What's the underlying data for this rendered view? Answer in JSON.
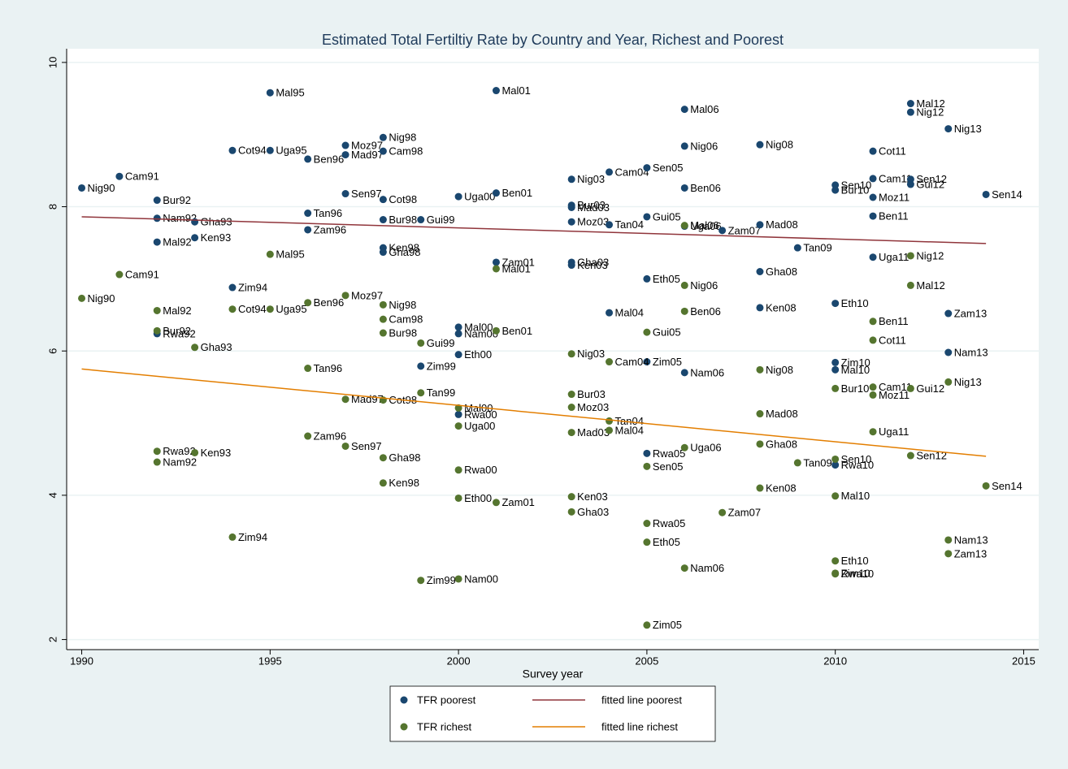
{
  "chart_data": {
    "type": "scatter",
    "title": "Estimated Total Fertiltiy Rate by Country and Year, Richest and Poorest",
    "x_label": "Survey year",
    "xlim": [
      1989.6,
      2015.4
    ],
    "xticks": [
      1990,
      1995,
      2000,
      2005,
      2010,
      2015
    ],
    "ylim": [
      1.86,
      10.19
    ],
    "yticks": [
      2,
      4,
      6,
      8,
      10
    ],
    "grid": true,
    "series": [
      {
        "name": "TFR poorest",
        "kind": "scatter",
        "color": "#1a476f",
        "x": [
          1990,
          1991,
          1992,
          1992,
          1992,
          1992,
          1993,
          1993,
          1994,
          1994,
          1995,
          1995,
          1996,
          1996,
          1996,
          1997,
          1997,
          1997,
          1998,
          1998,
          1998,
          1998,
          1998,
          1998,
          1999,
          1999,
          2000,
          2000,
          2000,
          2000,
          2000,
          2001,
          2001,
          2001,
          2003,
          2003,
          2003,
          2003,
          2003,
          2003,
          2004,
          2004,
          2004,
          2005,
          2005,
          2005,
          2005,
          2005,
          2006,
          2006,
          2006,
          2006,
          2006,
          2007,
          2008,
          2008,
          2008,
          2008,
          2009,
          2010,
          2010,
          2010,
          2010,
          2010,
          2010,
          2011,
          2011,
          2011,
          2011,
          2011,
          2012,
          2012,
          2012,
          2012,
          2013,
          2013,
          2013,
          2014
        ],
        "values": [
          8.26,
          8.42,
          8.09,
          7.84,
          7.51,
          6.24,
          7.79,
          7.57,
          6.88,
          8.78,
          9.58,
          8.78,
          8.66,
          7.91,
          7.68,
          8.85,
          8.72,
          8.18,
          8.96,
          8.77,
          8.1,
          7.82,
          7.43,
          7.37,
          7.82,
          5.79,
          8.14,
          6.33,
          6.24,
          5.95,
          5.12,
          8.19,
          9.61,
          7.23,
          8.38,
          8.02,
          7.99,
          7.79,
          7.23,
          7.19,
          8.48,
          7.75,
          6.53,
          8.54,
          7.86,
          7.0,
          5.85,
          4.58,
          9.35,
          8.84,
          8.26,
          7.73,
          5.7,
          7.67,
          8.86,
          7.75,
          7.1,
          6.6,
          7.43,
          8.3,
          8.23,
          6.66,
          5.84,
          5.74,
          4.42,
          8.77,
          8.39,
          8.13,
          7.87,
          7.3,
          9.43,
          9.31,
          8.38,
          8.31,
          9.08,
          6.52,
          5.98,
          8.17
        ],
        "labels": [
          "Nig90",
          "Cam91",
          "Bur92",
          "Nam92",
          "Mal92",
          "Rwa92",
          "Gha93",
          "Ken93",
          "Zim94",
          "Cot94",
          "Mal95",
          "Uga95",
          "Ben96",
          "Tan96",
          "Zam96",
          "Moz97",
          "Mad97",
          "Sen97",
          "Nig98",
          "Cam98",
          "Cot98",
          "Bur98",
          "Ken98",
          "Gha98",
          "Gui99",
          "Zim99",
          "Uga00",
          "Mal00",
          "Nam00",
          "Eth00",
          "Rwa00",
          "Ben01",
          "Mal01",
          "Zam01",
          "Nig03",
          "Bur03",
          "Mad03",
          "Moz03",
          "Gha03",
          "Ken03",
          "Cam04",
          "Tan04",
          "Mal04",
          "Sen05",
          "Gui05",
          "Eth05",
          "Zim05",
          "Rwa05",
          "Mal06",
          "Nig06",
          "Ben06",
          "Uga06",
          "Nam06",
          "Zam07",
          "Nig08",
          "Mad08",
          "Gha08",
          "Ken08",
          "Tan09",
          "Sen10",
          "Bur10",
          "Eth10",
          "Zim10",
          "Mal10",
          "Rwa10",
          "Cot11",
          "Cam11",
          "Moz11",
          "Ben11",
          "Uga11",
          "Mal12",
          "Nig12",
          "Sen12",
          "Gui12",
          "Nig13",
          "Zam13",
          "Nam13",
          "Sen14"
        ]
      },
      {
        "name": "fitted line poorest",
        "kind": "line",
        "color": "#90353b",
        "x": [
          1990,
          2014
        ],
        "values": [
          7.86,
          7.49
        ]
      },
      {
        "name": "TFR richest",
        "kind": "scatter",
        "color": "#55752f",
        "x": [
          1990,
          1991,
          1992,
          1992,
          1992,
          1992,
          1993,
          1993,
          1994,
          1994,
          1995,
          1995,
          1996,
          1996,
          1996,
          1997,
          1997,
          1997,
          1998,
          1998,
          1998,
          1998,
          1998,
          1998,
          1999,
          1999,
          1999,
          2000,
          2000,
          2000,
          2000,
          2000,
          2001,
          2001,
          2001,
          2003,
          2003,
          2003,
          2003,
          2003,
          2003,
          2004,
          2004,
          2004,
          2005,
          2005,
          2005,
          2005,
          2005,
          2006,
          2006,
          2006,
          2006,
          2006,
          2007,
          2008,
          2008,
          2008,
          2008,
          2009,
          2010,
          2010,
          2010,
          2010,
          2010,
          2010,
          2011,
          2011,
          2011,
          2011,
          2011,
          2012,
          2012,
          2012,
          2012,
          2013,
          2013,
          2013,
          2014
        ],
        "values": [
          6.73,
          7.06,
          6.56,
          6.28,
          4.61,
          4.46,
          6.05,
          4.59,
          6.58,
          3.42,
          7.34,
          6.58,
          6.67,
          5.76,
          4.82,
          6.77,
          5.33,
          4.68,
          6.64,
          6.44,
          6.25,
          5.32,
          4.52,
          4.17,
          6.11,
          5.42,
          2.82,
          5.21,
          4.96,
          4.35,
          3.96,
          2.84,
          7.14,
          6.28,
          3.9,
          5.96,
          5.4,
          5.22,
          4.87,
          3.98,
          3.77,
          5.85,
          5.03,
          4.9,
          6.26,
          4.4,
          3.61,
          3.35,
          2.2,
          7.74,
          6.91,
          6.55,
          4.66,
          2.99,
          3.76,
          5.74,
          5.13,
          4.71,
          4.1,
          4.45,
          5.48,
          4.5,
          3.99,
          3.09,
          2.92,
          2.91,
          5.5,
          5.39,
          4.88,
          6.41,
          6.15,
          6.91,
          7.32,
          5.48,
          4.55,
          5.57,
          3.38,
          3.19,
          4.13
        ],
        "labels": [
          "Nig90",
          "Cam91",
          "Mal92",
          "Bur92",
          "Rwa92",
          "Nam92",
          "Gha93",
          "Ken93",
          "Cot94",
          "Zim94",
          "Mal95",
          "Uga95",
          "Ben96",
          "Tan96",
          "Zam96",
          "Moz97",
          "Mad97",
          "Sen97",
          "Nig98",
          "Cam98",
          "Bur98",
          "Cot98",
          "Gha98",
          "Ken98",
          "Gui99",
          "Tan99",
          "Zim99",
          "Mal00",
          "Uga00",
          "Rwa00",
          "Eth00",
          "Nam00",
          "Mal01",
          "Ben01",
          "Zam01",
          "Nig03",
          "Bur03",
          "Moz03",
          "Mad03",
          "Ken03",
          "Gha03",
          "Cam04",
          "Tan04",
          "Mal04",
          "Gui05",
          "Sen05",
          "Rwa05",
          "Eth05",
          "Zim05",
          "Mal06",
          "Nig06",
          "Ben06",
          "Uga06",
          "Nam06",
          "Zam07",
          "Nig08",
          "Mad08",
          "Gha08",
          "Ken08",
          "Tan09",
          "Bur10",
          "Sen10",
          "Mal10",
          "Eth10",
          "Zim10",
          "Rwa10",
          "Cam11",
          "Moz11",
          "Uga11",
          "Ben11",
          "Cot11",
          "Mal12",
          "Nig12",
          "Gui12",
          "Sen12",
          "Nig13",
          "Nam13",
          "Zam13",
          "Sen14"
        ]
      },
      {
        "name": "fitted line richest",
        "kind": "line",
        "color": "#e37e00",
        "x": [
          1990,
          2014
        ],
        "values": [
          5.75,
          4.54
        ]
      }
    ]
  }
}
